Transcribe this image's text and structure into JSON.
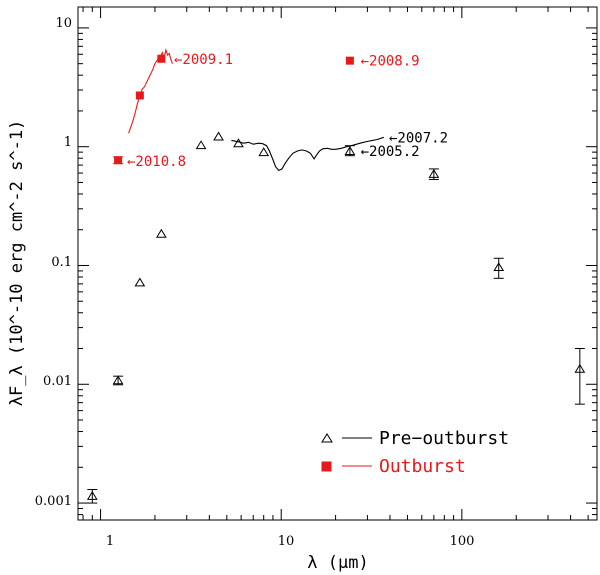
{
  "chart_data": {
    "type": "scatter",
    "xscale": "log",
    "yscale": "log",
    "xlim": [
      0.75,
      560
    ],
    "ylim": [
      0.00072,
      15
    ],
    "xlabel": "λ (μm)",
    "ylabel": "λF_λ (10^-10 erg cm^-2 s^-1)",
    "x_tick_labels": [
      "1",
      "10",
      "100"
    ],
    "y_tick_labels": [
      "0.001",
      "0.01",
      "0.1",
      "1",
      "10"
    ],
    "colors": {
      "pre": "#000000",
      "out": "#e8191a"
    },
    "legend": {
      "position": "bottom-right",
      "entries": [
        {
          "label": "Pre−outburst",
          "marker": "open-triangle",
          "color": "#000000"
        },
        {
          "label": "Outburst",
          "marker": "filled-square",
          "color": "#e8191a"
        }
      ]
    },
    "series": [
      {
        "name": "Pre−outburst",
        "marker": "open-triangle",
        "points": [
          {
            "x": 0.9,
            "y": 0.00115,
            "ylo": 0.001,
            "yhi": 0.0013
          },
          {
            "x": 1.25,
            "y": 0.0108,
            "ylo": 0.0099,
            "yhi": 0.0117
          },
          {
            "x": 1.65,
            "y": 0.072
          },
          {
            "x": 2.17,
            "y": 0.185
          },
          {
            "x": 3.6,
            "y": 1.03
          },
          {
            "x": 4.5,
            "y": 1.22
          },
          {
            "x": 5.8,
            "y": 1.07
          },
          {
            "x": 8.0,
            "y": 0.9
          },
          {
            "x": 24,
            "y": 0.92,
            "ylo": 0.84,
            "yhi": 1.02
          },
          {
            "x": 70,
            "y": 0.59,
            "ylo": 0.53,
            "yhi": 0.65
          },
          {
            "x": 160,
            "y": 0.097,
            "ylo": 0.078,
            "yhi": 0.115
          },
          {
            "x": 450,
            "y": 0.0135,
            "ylo": 0.0068,
            "yhi": 0.02
          }
        ]
      },
      {
        "name": "Outburst",
        "marker": "filled-square",
        "points": [
          {
            "x": 1.25,
            "y": 0.77,
            "ylo": 0.72,
            "yhi": 0.82
          },
          {
            "x": 1.65,
            "y": 2.7
          },
          {
            "x": 2.17,
            "y": 5.5
          },
          {
            "x": 24,
            "y": 5.3
          }
        ]
      }
    ],
    "spectra": [
      {
        "epoch": "2007.2",
        "color": "#000000",
        "points": [
          [
            5.3,
            1.13
          ],
          [
            5.8,
            1.1
          ],
          [
            6.2,
            1.07
          ],
          [
            6.6,
            1.09
          ],
          [
            7.0,
            1.05
          ],
          [
            7.5,
            1.07
          ],
          [
            7.9,
            1.06
          ],
          [
            8.3,
            1.02
          ],
          [
            8.6,
            0.92
          ],
          [
            9.0,
            0.78
          ],
          [
            9.3,
            0.68
          ],
          [
            9.7,
            0.63
          ],
          [
            10.1,
            0.65
          ],
          [
            10.5,
            0.72
          ],
          [
            11.0,
            0.8
          ],
          [
            11.6,
            0.88
          ],
          [
            12.3,
            0.92
          ],
          [
            13.0,
            0.94
          ],
          [
            13.8,
            0.92
          ],
          [
            14.5,
            0.88
          ],
          [
            15.2,
            0.79
          ],
          [
            15.6,
            0.84
          ],
          [
            16.3,
            0.92
          ],
          [
            17.0,
            0.96
          ],
          [
            18.0,
            0.97
          ],
          [
            19.0,
            0.95
          ],
          [
            20.0,
            0.95
          ],
          [
            21.5,
            0.97
          ],
          [
            23.0,
            1.0
          ],
          [
            25.0,
            1.03
          ],
          [
            28.0,
            1.08
          ],
          [
            31.0,
            1.12
          ],
          [
            34.0,
            1.15
          ],
          [
            37.0,
            1.2
          ]
        ]
      },
      {
        "epoch": "2009.1",
        "color": "#e8191a",
        "points": [
          [
            1.43,
            1.3
          ],
          [
            1.5,
            1.6
          ],
          [
            1.55,
            1.9
          ],
          [
            1.6,
            2.3
          ],
          [
            1.65,
            2.7
          ],
          [
            1.7,
            3.05
          ],
          [
            1.75,
            3.2
          ],
          [
            1.95,
            4.5
          ],
          [
            2.0,
            5.0
          ],
          [
            2.05,
            5.3
          ],
          [
            2.1,
            5.6
          ],
          [
            2.15,
            5.8
          ],
          [
            2.2,
            6.2
          ],
          [
            2.25,
            5.6
          ],
          [
            2.3,
            6.5
          ],
          [
            2.35,
            5.9
          ],
          [
            2.4,
            6.1
          ],
          [
            2.45,
            5.4
          ],
          [
            2.5,
            5.0
          ]
        ]
      }
    ],
    "annotations": [
      {
        "text": "←2009.1",
        "color": "#e8191a",
        "x": 2.55,
        "y": 5.5
      },
      {
        "text": "←2008.9",
        "color": "#e8191a",
        "x": 27.5,
        "y": 5.3
      },
      {
        "text": "←2007.2",
        "color": "#000000",
        "x": 39.5,
        "y": 1.2
      },
      {
        "text": "←2005.2",
        "color": "#000000",
        "x": 27.5,
        "y": 0.92
      },
      {
        "text": "←2010.8",
        "color": "#e8191a",
        "x": 1.4,
        "y": 0.76
      }
    ]
  }
}
